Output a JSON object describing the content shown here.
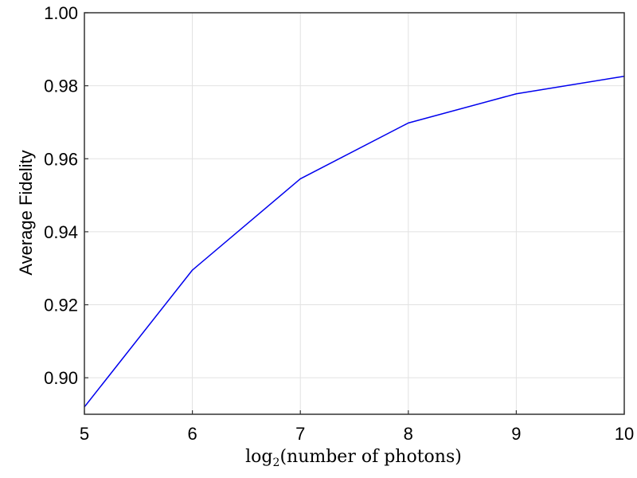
{
  "chart_data": {
    "type": "line",
    "xlabel_parts": {
      "fn": "log",
      "sub": "2",
      "rest": "(number of photons)"
    },
    "ylabel": "Average Fidelity",
    "xlim": [
      5,
      10
    ],
    "ylim": [
      0.89,
      1.0
    ],
    "x_ticks": [
      "5",
      "6",
      "7",
      "8",
      "9",
      "10"
    ],
    "y_ticks": [
      "0.90",
      "0.92",
      "0.94",
      "0.96",
      "0.98",
      "1.00"
    ],
    "grid": true,
    "series": [
      {
        "color": "#0000ee",
        "x": [
          5,
          6,
          7,
          8,
          9,
          10
        ],
        "y": [
          0.892,
          0.9295,
          0.9545,
          0.9698,
          0.9778,
          0.9826
        ]
      }
    ]
  }
}
